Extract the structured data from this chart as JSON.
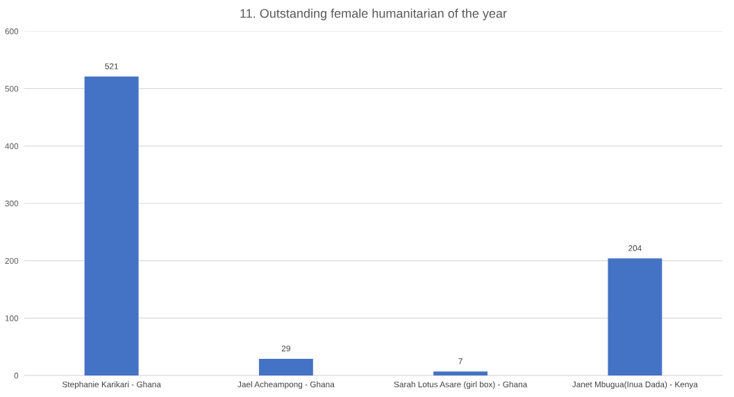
{
  "chart_data": {
    "type": "bar",
    "title": "11. Outstanding female humanitarian of the year",
    "categories": [
      "Stephanie Karikari - Ghana",
      "Jael Acheampong - Ghana",
      "Sarah Lotus Asare (girl box) - Ghana",
      "Janet Mbugua(Inua Dada) - Kenya"
    ],
    "values": [
      521,
      29,
      7,
      204
    ],
    "color": "#4472c4",
    "ylim": [
      0,
      600
    ],
    "yticks": [
      0,
      100,
      200,
      300,
      400,
      500,
      600
    ],
    "grid": "y",
    "data_labels": true
  }
}
